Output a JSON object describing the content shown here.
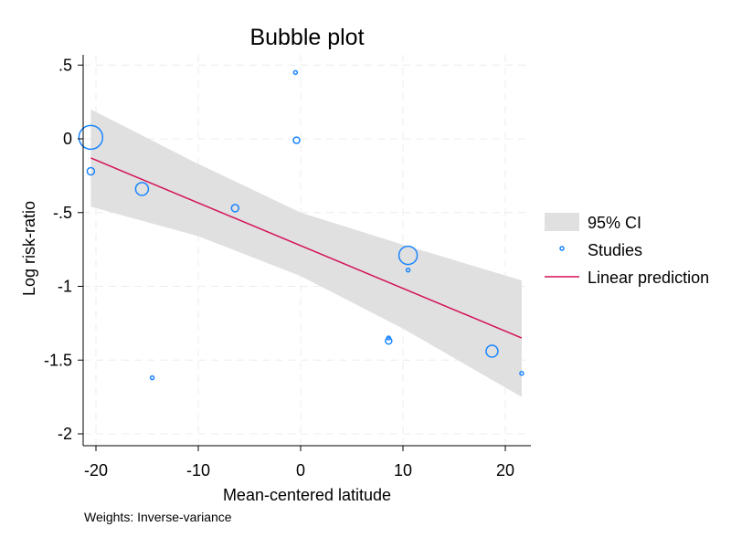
{
  "chart_data": {
    "type": "scatter",
    "title": "Bubble plot",
    "xlabel": "Mean-centered latitude",
    "ylabel": "Log risk-ratio",
    "note": "Weights: Inverse-variance",
    "xlim": [
      -21.5,
      22.5
    ],
    "ylim": [
      -2.07,
      0.57
    ],
    "xticks": [
      -20,
      -10,
      0,
      10,
      20
    ],
    "xtick_labels": [
      "-20",
      "-10",
      "0",
      "10",
      "20"
    ],
    "yticks": [
      0.5,
      0,
      -0.5,
      -1,
      -1.5,
      -2
    ],
    "ytick_labels": [
      ".5",
      "0",
      "-.5",
      "-1",
      "-1.5",
      "-2"
    ],
    "grid": true,
    "legend_position": "right",
    "legend": [
      "95% CI",
      "Studies",
      "Linear prediction"
    ],
    "studies": [
      {
        "x": -20.5,
        "y": 0.01,
        "weight": 13
      },
      {
        "x": -20.5,
        "y": -0.22,
        "weight": 4
      },
      {
        "x": -15.5,
        "y": -0.34,
        "weight": 7
      },
      {
        "x": -14.5,
        "y": -1.62,
        "weight": 2
      },
      {
        "x": -6.4,
        "y": -0.47,
        "weight": 4
      },
      {
        "x": -0.5,
        "y": 0.45,
        "weight": 2
      },
      {
        "x": -0.4,
        "y": -0.01,
        "weight": 3.5
      },
      {
        "x": 10.5,
        "y": -0.79,
        "weight": 10
      },
      {
        "x": 10.5,
        "y": -0.89,
        "weight": 2
      },
      {
        "x": 8.6,
        "y": -1.35,
        "weight": 2
      },
      {
        "x": 8.6,
        "y": -1.37,
        "weight": 3.5
      },
      {
        "x": 18.7,
        "y": -1.44,
        "weight": 6.5
      },
      {
        "x": 21.6,
        "y": -1.59,
        "weight": 2
      }
    ],
    "linear_prediction": [
      {
        "x": -20.5,
        "y": -0.13
      },
      {
        "x": 21.6,
        "y": -1.35
      }
    ],
    "ci_upper": [
      {
        "x": -20.5,
        "y": 0.2
      },
      {
        "x": -10.3,
        "y": -0.16
      },
      {
        "x": 0,
        "y": -0.5
      },
      {
        "x": 10.1,
        "y": -0.72
      },
      {
        "x": 21.6,
        "y": -0.96
      }
    ],
    "ci_lower": [
      {
        "x": -20.5,
        "y": -0.46
      },
      {
        "x": -10,
        "y": -0.66
      },
      {
        "x": 0,
        "y": -0.93
      },
      {
        "x": 10.1,
        "y": -1.29
      },
      {
        "x": 21.6,
        "y": -1.75
      }
    ],
    "colors": {
      "studies": "#1a85ff",
      "line": "#d41159",
      "ci": "#e0e0e0",
      "grid": "#ececec"
    }
  }
}
